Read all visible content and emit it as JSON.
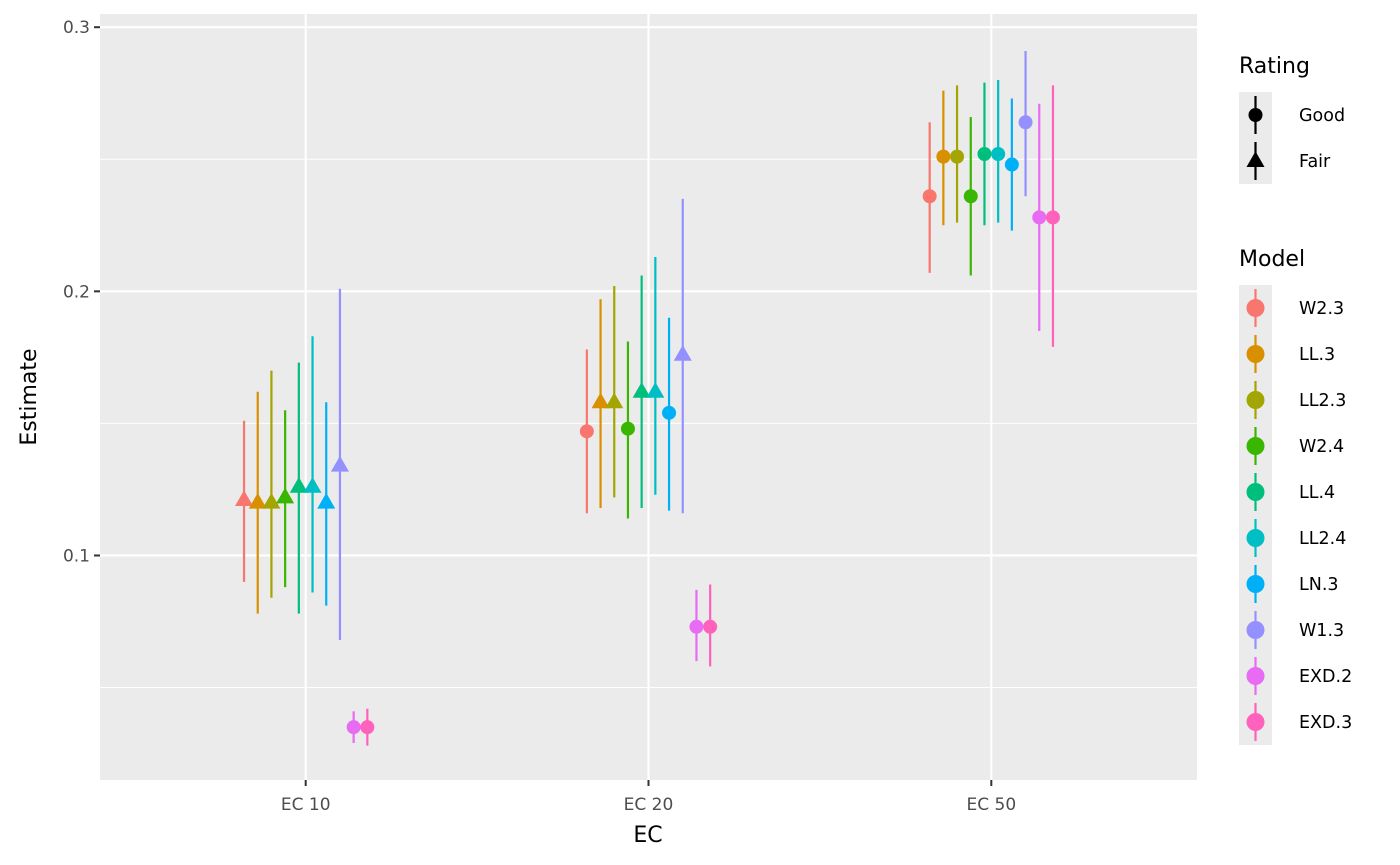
{
  "chart_data": {
    "type": "scatter",
    "title": "",
    "xlabel": "EC",
    "ylabel": "Estimate",
    "categories": [
      "EC 10",
      "EC 20",
      "EC 50"
    ],
    "ylim": [
      0.015,
      0.305
    ],
    "y_ticks": [
      0.1,
      0.2,
      0.3
    ],
    "y_tick_labels": [
      "0.1",
      "0.2",
      "0.3"
    ],
    "grid": true,
    "legend_placement": "right",
    "legends": {
      "shape": {
        "title": "Rating",
        "entries": [
          {
            "label": "Good",
            "shape": "circle"
          },
          {
            "label": "Fair",
            "shape": "triangle"
          }
        ]
      },
      "color": {
        "title": "Model",
        "entries": [
          {
            "label": "W2.3",
            "color": "#F8766D"
          },
          {
            "label": "LL.3",
            "color": "#D89000"
          },
          {
            "label": "LL2.3",
            "color": "#A3A500"
          },
          {
            "label": "W2.4",
            "color": "#39B600"
          },
          {
            "label": "LL.4",
            "color": "#00BF7D"
          },
          {
            "label": "LL2.4",
            "color": "#00BFC4"
          },
          {
            "label": "LN.3",
            "color": "#00B0F6"
          },
          {
            "label": "W1.3",
            "color": "#9590FF"
          },
          {
            "label": "EXD.2",
            "color": "#E76BF3"
          },
          {
            "label": "EXD.3",
            "color": "#FF62BC"
          }
        ]
      }
    },
    "series": [
      {
        "name": "W2.3",
        "points": [
          {
            "x": "EC 10",
            "y": 0.121,
            "lower": 0.09,
            "upper": 0.151,
            "rating": "Fair"
          },
          {
            "x": "EC 20",
            "y": 0.147,
            "lower": 0.116,
            "upper": 0.178,
            "rating": "Good"
          },
          {
            "x": "EC 50",
            "y": 0.236,
            "lower": 0.207,
            "upper": 0.264,
            "rating": "Good"
          }
        ]
      },
      {
        "name": "LL.3",
        "points": [
          {
            "x": "EC 10",
            "y": 0.12,
            "lower": 0.078,
            "upper": 0.162,
            "rating": "Fair"
          },
          {
            "x": "EC 20",
            "y": 0.158,
            "lower": 0.118,
            "upper": 0.197,
            "rating": "Fair"
          },
          {
            "x": "EC 50",
            "y": 0.251,
            "lower": 0.225,
            "upper": 0.276,
            "rating": "Good"
          }
        ]
      },
      {
        "name": "LL2.3",
        "points": [
          {
            "x": "EC 10",
            "y": 0.12,
            "lower": 0.084,
            "upper": 0.17,
            "rating": "Fair"
          },
          {
            "x": "EC 20",
            "y": 0.158,
            "lower": 0.122,
            "upper": 0.202,
            "rating": "Fair"
          },
          {
            "x": "EC 50",
            "y": 0.251,
            "lower": 0.226,
            "upper": 0.278,
            "rating": "Good"
          }
        ]
      },
      {
        "name": "W2.4",
        "points": [
          {
            "x": "EC 10",
            "y": 0.122,
            "lower": 0.088,
            "upper": 0.155,
            "rating": "Fair"
          },
          {
            "x": "EC 20",
            "y": 0.148,
            "lower": 0.114,
            "upper": 0.181,
            "rating": "Good"
          },
          {
            "x": "EC 50",
            "y": 0.236,
            "lower": 0.206,
            "upper": 0.266,
            "rating": "Good"
          }
        ]
      },
      {
        "name": "LL.4",
        "points": [
          {
            "x": "EC 10",
            "y": 0.126,
            "lower": 0.078,
            "upper": 0.173,
            "rating": "Fair"
          },
          {
            "x": "EC 20",
            "y": 0.162,
            "lower": 0.118,
            "upper": 0.206,
            "rating": "Fair"
          },
          {
            "x": "EC 50",
            "y": 0.252,
            "lower": 0.225,
            "upper": 0.279,
            "rating": "Good"
          }
        ]
      },
      {
        "name": "LL2.4",
        "points": [
          {
            "x": "EC 10",
            "y": 0.126,
            "lower": 0.086,
            "upper": 0.183,
            "rating": "Fair"
          },
          {
            "x": "EC 20",
            "y": 0.162,
            "lower": 0.123,
            "upper": 0.213,
            "rating": "Fair"
          },
          {
            "x": "EC 50",
            "y": 0.252,
            "lower": 0.226,
            "upper": 0.28,
            "rating": "Good"
          }
        ]
      },
      {
        "name": "LN.3",
        "points": [
          {
            "x": "EC 10",
            "y": 0.12,
            "lower": 0.081,
            "upper": 0.158,
            "rating": "Fair"
          },
          {
            "x": "EC 20",
            "y": 0.154,
            "lower": 0.117,
            "upper": 0.19,
            "rating": "Good"
          },
          {
            "x": "EC 50",
            "y": 0.248,
            "lower": 0.223,
            "upper": 0.273,
            "rating": "Good"
          }
        ]
      },
      {
        "name": "W1.3",
        "points": [
          {
            "x": "EC 10",
            "y": 0.134,
            "lower": 0.068,
            "upper": 0.201,
            "rating": "Fair"
          },
          {
            "x": "EC 20",
            "y": 0.176,
            "lower": 0.116,
            "upper": 0.235,
            "rating": "Fair"
          },
          {
            "x": "EC 50",
            "y": 0.264,
            "lower": 0.236,
            "upper": 0.291,
            "rating": "Good"
          }
        ]
      },
      {
        "name": "EXD.2",
        "points": [
          {
            "x": "EC 10",
            "y": 0.035,
            "lower": 0.029,
            "upper": 0.041,
            "rating": "Good"
          },
          {
            "x": "EC 20",
            "y": 0.073,
            "lower": 0.06,
            "upper": 0.087,
            "rating": "Good"
          },
          {
            "x": "EC 50",
            "y": 0.228,
            "lower": 0.185,
            "upper": 0.271,
            "rating": "Good"
          }
        ]
      },
      {
        "name": "EXD.3",
        "points": [
          {
            "x": "EC 10",
            "y": 0.035,
            "lower": 0.028,
            "upper": 0.042,
            "rating": "Good"
          },
          {
            "x": "EC 20",
            "y": 0.073,
            "lower": 0.058,
            "upper": 0.089,
            "rating": "Good"
          },
          {
            "x": "EC 50",
            "y": 0.228,
            "lower": 0.179,
            "upper": 0.278,
            "rating": "Good"
          }
        ]
      }
    ]
  }
}
